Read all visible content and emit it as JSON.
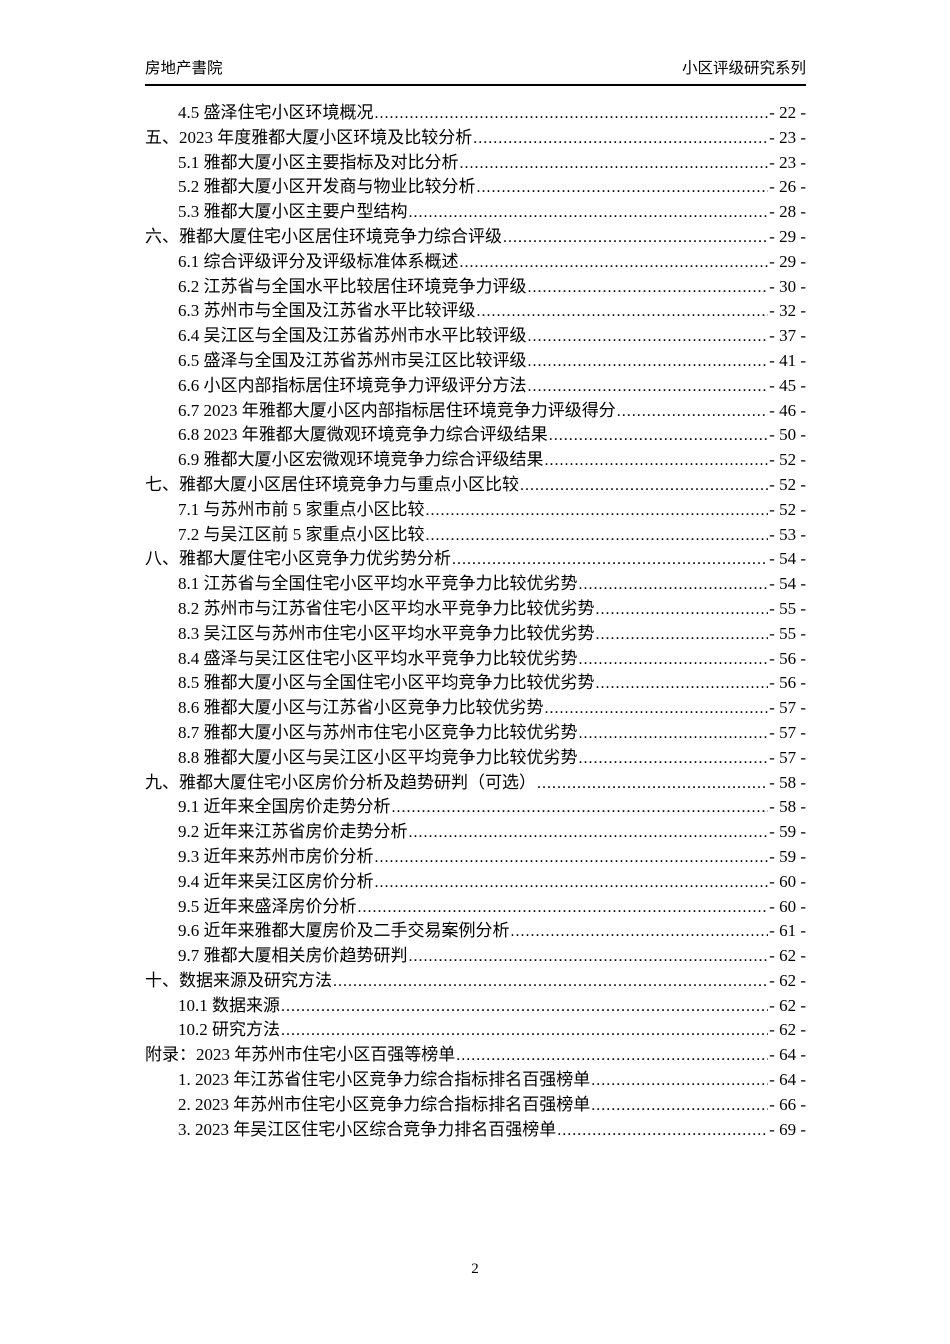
{
  "header": {
    "left": "房地产書院",
    "right": "小区评级研究系列"
  },
  "toc": {
    "entries": [
      {
        "level": 2,
        "label": "4.5 盛泽住宅小区环境概况",
        "page": "- 22 -"
      },
      {
        "level": 1,
        "label": "五、2023 年度雅都大厦小区环境及比较分析",
        "page": "- 23 -"
      },
      {
        "level": 2,
        "label": "5.1 雅都大厦小区主要指标及对比分析",
        "page": "- 23 -"
      },
      {
        "level": 2,
        "label": "5.2 雅都大厦小区开发商与物业比较分析",
        "page": "- 26 -"
      },
      {
        "level": 2,
        "label": "5.3 雅都大厦小区主要户型结构",
        "page": "- 28 -"
      },
      {
        "level": 1,
        "label": "六、雅都大厦住宅小区居住环境竞争力综合评级",
        "page": "- 29 -"
      },
      {
        "level": 2,
        "label": "6.1 综合评级评分及评级标准体系概述",
        "page": "- 29 -"
      },
      {
        "level": 2,
        "label": "6.2 江苏省与全国水平比较居住环境竞争力评级",
        "page": "- 30 -"
      },
      {
        "level": 2,
        "label": "6.3 苏州市与全国及江苏省水平比较评级",
        "page": "- 32 -"
      },
      {
        "level": 2,
        "label": "6.4 吴江区与全国及江苏省苏州市水平比较评级",
        "page": "- 37 -"
      },
      {
        "level": 2,
        "label": "6.5 盛泽与全国及江苏省苏州市吴江区比较评级",
        "page": "- 41 -"
      },
      {
        "level": 2,
        "label": "6.6 小区内部指标居住环境竞争力评级评分方法",
        "page": "- 45 -"
      },
      {
        "level": 2,
        "label": "6.7 2023 年雅都大厦小区内部指标居住环境竞争力评级得分",
        "page": "- 46 -"
      },
      {
        "level": 2,
        "label": "6.8 2023 年雅都大厦微观环境竞争力综合评级结果",
        "page": "- 50 -"
      },
      {
        "level": 2,
        "label": "6.9 雅都大厦小区宏微观环境竞争力综合评级结果",
        "page": "- 52 -"
      },
      {
        "level": 1,
        "label": "七、雅都大厦小区居住环境竞争力与重点小区比较",
        "page": "- 52 -"
      },
      {
        "level": 2,
        "label": "7.1 与苏州市前 5 家重点小区比较",
        "page": "- 52 -"
      },
      {
        "level": 2,
        "label": "7.2 与吴江区前 5 家重点小区比较",
        "page": "- 53 -"
      },
      {
        "level": 1,
        "label": "八、雅都大厦住宅小区竞争力优劣势分析",
        "page": "- 54 -"
      },
      {
        "level": 2,
        "label": "8.1 江苏省与全国住宅小区平均水平竞争力比较优劣势",
        "page": "- 54 -"
      },
      {
        "level": 2,
        "label": "8.2 苏州市与江苏省住宅小区平均水平竞争力比较优劣势",
        "page": "- 55 -"
      },
      {
        "level": 2,
        "label": "8.3 吴江区与苏州市住宅小区平均水平竞争力比较优劣势",
        "page": "- 55 -"
      },
      {
        "level": 2,
        "label": "8.4 盛泽与吴江区住宅小区平均水平竞争力比较优劣势",
        "page": "- 56 -"
      },
      {
        "level": 2,
        "label": "8.5 雅都大厦小区与全国住宅小区平均竞争力比较优劣势",
        "page": "- 56 -"
      },
      {
        "level": 2,
        "label": "8.6 雅都大厦小区与江苏省小区竞争力比较优劣势",
        "page": "- 57 -"
      },
      {
        "level": 2,
        "label": "8.7 雅都大厦小区与苏州市住宅小区竞争力比较优劣势",
        "page": "- 57 -"
      },
      {
        "level": 2,
        "label": "8.8 雅都大厦小区与吴江区小区平均竞争力比较优劣势",
        "page": "- 57 -"
      },
      {
        "level": 1,
        "label": "九、雅都大厦住宅小区房价分析及趋势研判（可选）",
        "page": "- 58 -"
      },
      {
        "level": 2,
        "label": "9.1 近年来全国房价走势分析",
        "page": "- 58 -"
      },
      {
        "level": 2,
        "label": "9.2 近年来江苏省房价走势分析",
        "page": "- 59 -"
      },
      {
        "level": 2,
        "label": "9.3 近年来苏州市房价分析",
        "page": "- 59 -"
      },
      {
        "level": 2,
        "label": "9.4 近年来吴江区房价分析",
        "page": "- 60 -"
      },
      {
        "level": 2,
        "label": "9.5 近年来盛泽房价分析",
        "page": "- 60 -"
      },
      {
        "level": 2,
        "label": "9.6 近年来雅都大厦房价及二手交易案例分析",
        "page": "- 61 -"
      },
      {
        "level": 2,
        "label": "9.7 雅都大厦相关房价趋势研判",
        "page": "- 62 -"
      },
      {
        "level": 1,
        "label": "十、数据来源及研究方法",
        "page": "- 62 -"
      },
      {
        "level": 2,
        "label": "10.1 数据来源",
        "page": "- 62 -"
      },
      {
        "level": 2,
        "label": "10.2 研究方法",
        "page": "- 62 -"
      },
      {
        "level": 1,
        "label": "附录：2023 年苏州市住宅小区百强等榜单",
        "page": "- 64 -"
      },
      {
        "level": 2,
        "label": "1. 2023 年江苏省住宅小区竞争力综合指标排名百强榜单",
        "page": "- 64 -"
      },
      {
        "level": 2,
        "label": "2. 2023 年苏州市住宅小区竞争力综合指标排名百强榜单",
        "page": "- 66 -"
      },
      {
        "level": 2,
        "label": "3. 2023 年吴江区住宅小区综合竞争力排名百强榜单",
        "page": "- 69 -"
      }
    ]
  },
  "footer": {
    "page_number": "2"
  }
}
